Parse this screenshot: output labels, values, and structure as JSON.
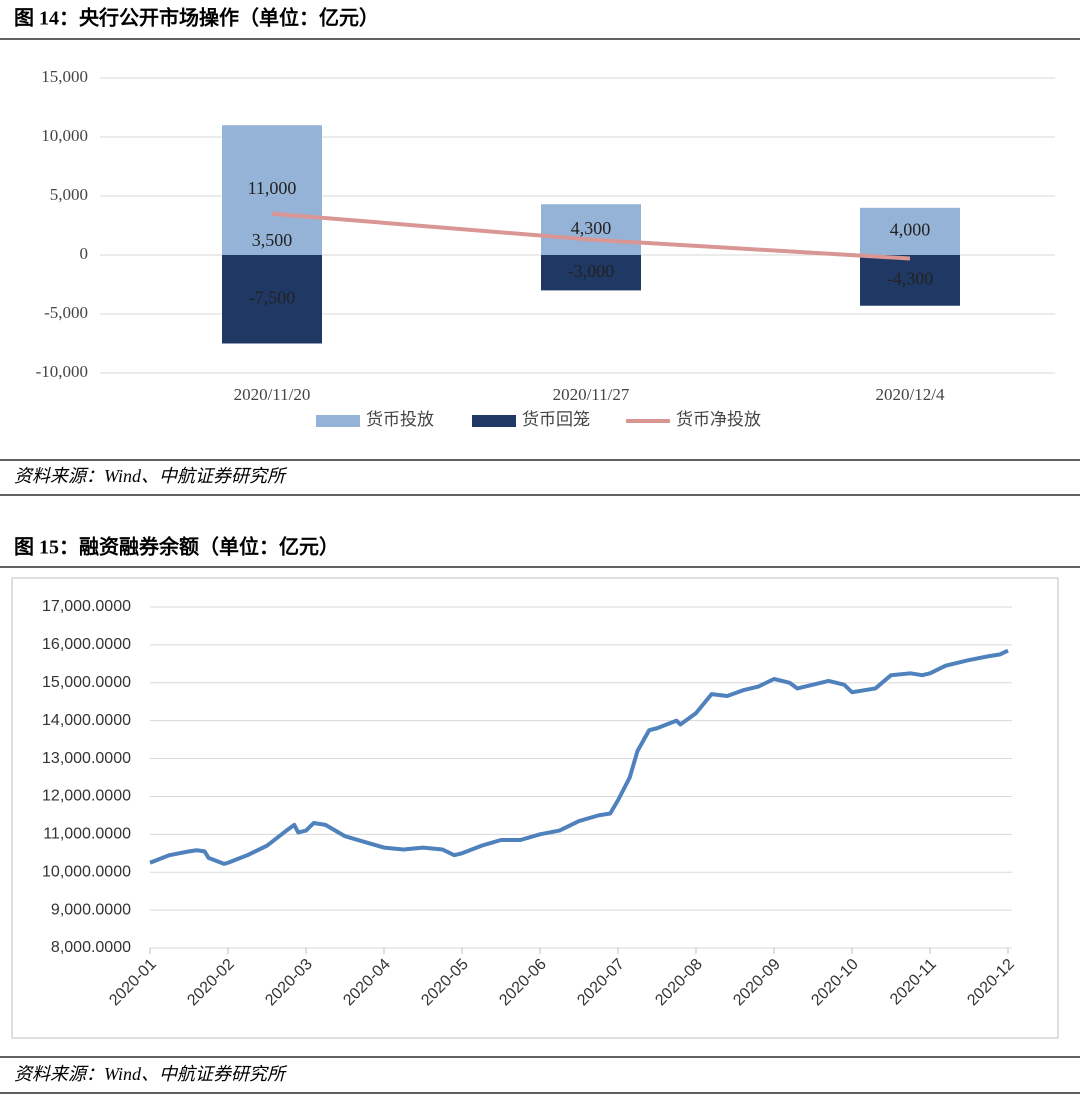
{
  "chart_data": [
    {
      "type": "bar",
      "title": "图 14：央行公开市场操作（单位：亿元）",
      "source": "资料来源：Wind、中航证券研究所",
      "categories": [
        "2020/11/20",
        "2020/11/27",
        "2020/12/4"
      ],
      "series": [
        {
          "name": "货币投放",
          "color": "#95b3d7",
          "values": [
            11000,
            4300,
            4000
          ],
          "value_labels": [
            "11,000",
            "4,300",
            "4,000"
          ]
        },
        {
          "name": "货币回笼",
          "color": "#1f3864",
          "values": [
            -7500,
            -3000,
            -4300
          ],
          "value_labels": [
            "-7,500",
            "-3,000",
            "-4,300"
          ]
        },
        {
          "name": "货币净投放",
          "color": "#d99694",
          "type": "line",
          "values": [
            3500,
            1300,
            -300
          ],
          "value_labels": [
            "3,500",
            null,
            null
          ]
        }
      ],
      "ylim": [
        -10000,
        15000
      ],
      "yticks": [
        {
          "value": -10000,
          "label": "-10,000"
        },
        {
          "value": -5000,
          "label": "-5,000"
        },
        0,
        {
          "value": 5000,
          "label": "5,000"
        },
        {
          "value": 10000,
          "label": "10,000"
        },
        {
          "value": 15000,
          "label": "15,000"
        }
      ],
      "grid": true,
      "legend": "bottom"
    },
    {
      "type": "line",
      "title": "图 15：融资融券余额（单位：亿元）",
      "source": "资料来源：Wind、中航证券研究所",
      "color": "#4f81bd",
      "x": [
        0,
        0.25,
        0.5,
        0.6,
        0.7,
        0.75,
        0.95,
        1.0,
        1.25,
        1.5,
        1.75,
        1.85,
        1.9,
        2.0,
        2.1,
        2.25,
        2.5,
        2.75,
        3.0,
        3.25,
        3.5,
        3.75,
        3.9,
        4.0,
        4.25,
        4.5,
        4.75,
        5.0,
        5.25,
        5.5,
        5.75,
        5.9,
        6.0,
        6.15,
        6.25,
        6.4,
        6.5,
        6.75,
        6.8,
        7.0,
        7.2,
        7.4,
        7.6,
        7.8,
        8.0,
        8.2,
        8.3,
        8.5,
        8.7,
        8.9,
        9.0,
        9.3,
        9.5,
        9.75,
        9.9,
        10.0,
        10.2,
        10.5,
        10.75,
        10.9,
        11.0
      ],
      "values": [
        10250,
        10450,
        10550,
        10580,
        10550,
        10380,
        10220,
        10250,
        10450,
        10700,
        11100,
        11250,
        11050,
        11100,
        11300,
        11250,
        10950,
        10800,
        10650,
        10600,
        10650,
        10600,
        10450,
        10500,
        10700,
        10850,
        10850,
        11000,
        11100,
        11350,
        11500,
        11550,
        11900,
        12500,
        13200,
        13750,
        13800,
        14000,
        13900,
        14200,
        14700,
        14650,
        14800,
        14900,
        15100,
        15000,
        14850,
        14950,
        15050,
        14950,
        14750,
        14850,
        15200,
        15250,
        15200,
        15250,
        15450,
        15600,
        15700,
        15750,
        15850
      ],
      "xlim": [
        0,
        11
      ],
      "xticks": [
        {
          "value": 0,
          "label": "2020-01"
        },
        {
          "value": 1,
          "label": "2020-02"
        },
        {
          "value": 2,
          "label": "2020-03"
        },
        {
          "value": 3,
          "label": "2020-04"
        },
        {
          "value": 4,
          "label": "2020-05"
        },
        {
          "value": 5,
          "label": "2020-06"
        },
        {
          "value": 6,
          "label": "2020-07"
        },
        {
          "value": 7,
          "label": "2020-08"
        },
        {
          "value": 8,
          "label": "2020-09"
        },
        {
          "value": 9,
          "label": "2020-10"
        },
        {
          "value": 10,
          "label": "2020-11"
        },
        {
          "value": 11,
          "label": "2020-12"
        }
      ],
      "ylim": [
        8000,
        17000
      ],
      "yticks": [
        {
          "value": 8000,
          "label": "8,000.0000"
        },
        {
          "value": 9000,
          "label": "9,000.0000"
        },
        {
          "value": 10000,
          "label": "10,000.0000"
        },
        {
          "value": 11000,
          "label": "11,000.0000"
        },
        {
          "value": 12000,
          "label": "12,000.0000"
        },
        {
          "value": 13000,
          "label": "13,000.0000"
        },
        {
          "value": 14000,
          "label": "14,000.0000"
        },
        {
          "value": 15000,
          "label": "15,000.0000"
        },
        {
          "value": 16000,
          "label": "16,000.0000"
        },
        {
          "value": 17000,
          "label": "17,000.0000"
        }
      ],
      "grid": true
    }
  ]
}
